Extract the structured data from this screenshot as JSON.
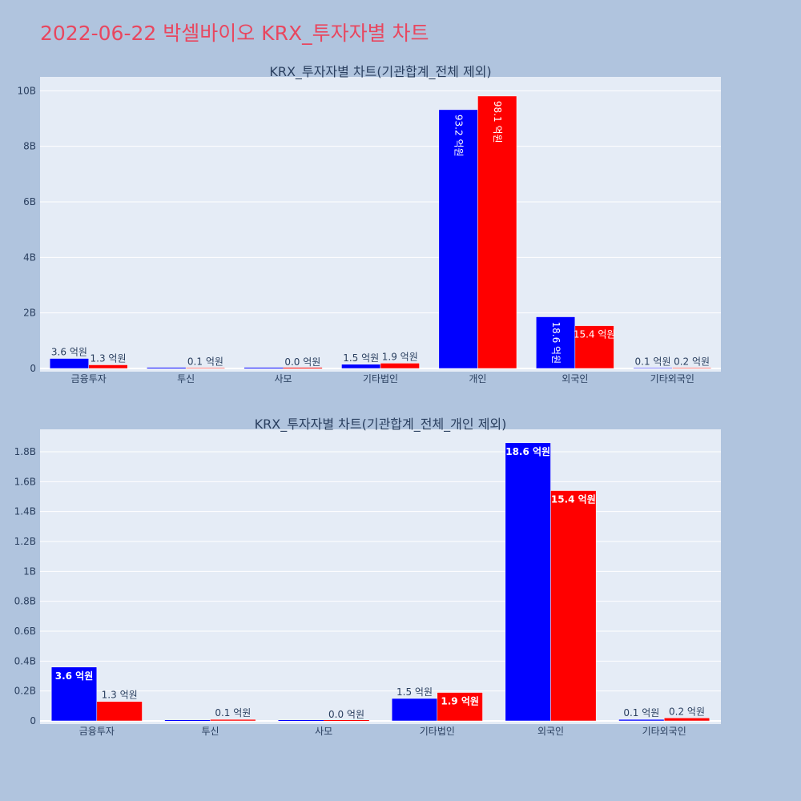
{
  "page": {
    "title": "2022-06-22 박셀바이오 KRX_투자자별 차트"
  },
  "colors": {
    "buy": "#0000ff",
    "sell": "#ff0000",
    "plot_bg": "#e5ecf6",
    "paper_bg": "#b0c4de",
    "title": "#e8475f"
  },
  "chart_data": [
    {
      "type": "bar",
      "title": "KRX_투자자별 차트(기관합계_전체 제외)",
      "categories": [
        "금융투자",
        "투신",
        "사모",
        "기타법인",
        "개인",
        "외국인",
        "기타외국인"
      ],
      "ylim": [
        0,
        10500000000
      ],
      "yticks": [
        0,
        2000000000,
        4000000000,
        6000000000,
        8000000000,
        10000000000
      ],
      "ytick_labels": [
        "0",
        "2B",
        "4B",
        "6B",
        "8B",
        "10B"
      ],
      "grid": true,
      "legend": "none",
      "series": [
        {
          "color": "#0000ff",
          "values": [
            360000000,
            0,
            0,
            150000000,
            9320000000,
            1860000000,
            10000000
          ],
          "labels": [
            "3.6 억원",
            "",
            "",
            "1.5 억원",
            "93.2 억원",
            "18.6 억원",
            "0.1 억원"
          ]
        },
        {
          "color": "#ff0000",
          "values": [
            130000000,
            10000000,
            0,
            190000000,
            9810000000,
            1540000000,
            20000000
          ],
          "labels": [
            "1.3 억원",
            "0.1 억원",
            "0.0 억원",
            "1.9 억원",
            "98.1 억원",
            "15.4 억원",
            "0.2 억원"
          ]
        }
      ]
    },
    {
      "type": "bar",
      "title": "KRX_투자자별 차트(기관합계_전체_개인 제외)",
      "categories": [
        "금융투자",
        "투신",
        "사모",
        "기타법인",
        "외국인",
        "기타외국인"
      ],
      "ylim": [
        0,
        1950000000
      ],
      "yticks": [
        0,
        200000000,
        400000000,
        600000000,
        800000000,
        1000000000,
        1200000000,
        1400000000,
        1600000000,
        1800000000
      ],
      "ytick_labels": [
        "0",
        "0.2B",
        "0.4B",
        "0.6B",
        "0.8B",
        "1B",
        "1.2B",
        "1.4B",
        "1.6B",
        "1.8B"
      ],
      "grid": true,
      "legend": "none",
      "series": [
        {
          "color": "#0000ff",
          "values": [
            360000000,
            0,
            0,
            150000000,
            1860000000,
            10000000
          ],
          "labels": [
            "3.6 억원",
            "",
            "",
            "1.5 억원",
            "18.6 억원",
            "0.1 억원"
          ]
        },
        {
          "color": "#ff0000",
          "values": [
            130000000,
            10000000,
            0,
            190000000,
            1540000000,
            20000000
          ],
          "labels": [
            "1.3 억원",
            "0.1 억원",
            "0.0 억원",
            "1.9 억원",
            "15.4 억원",
            "0.2 억원"
          ]
        }
      ]
    }
  ]
}
